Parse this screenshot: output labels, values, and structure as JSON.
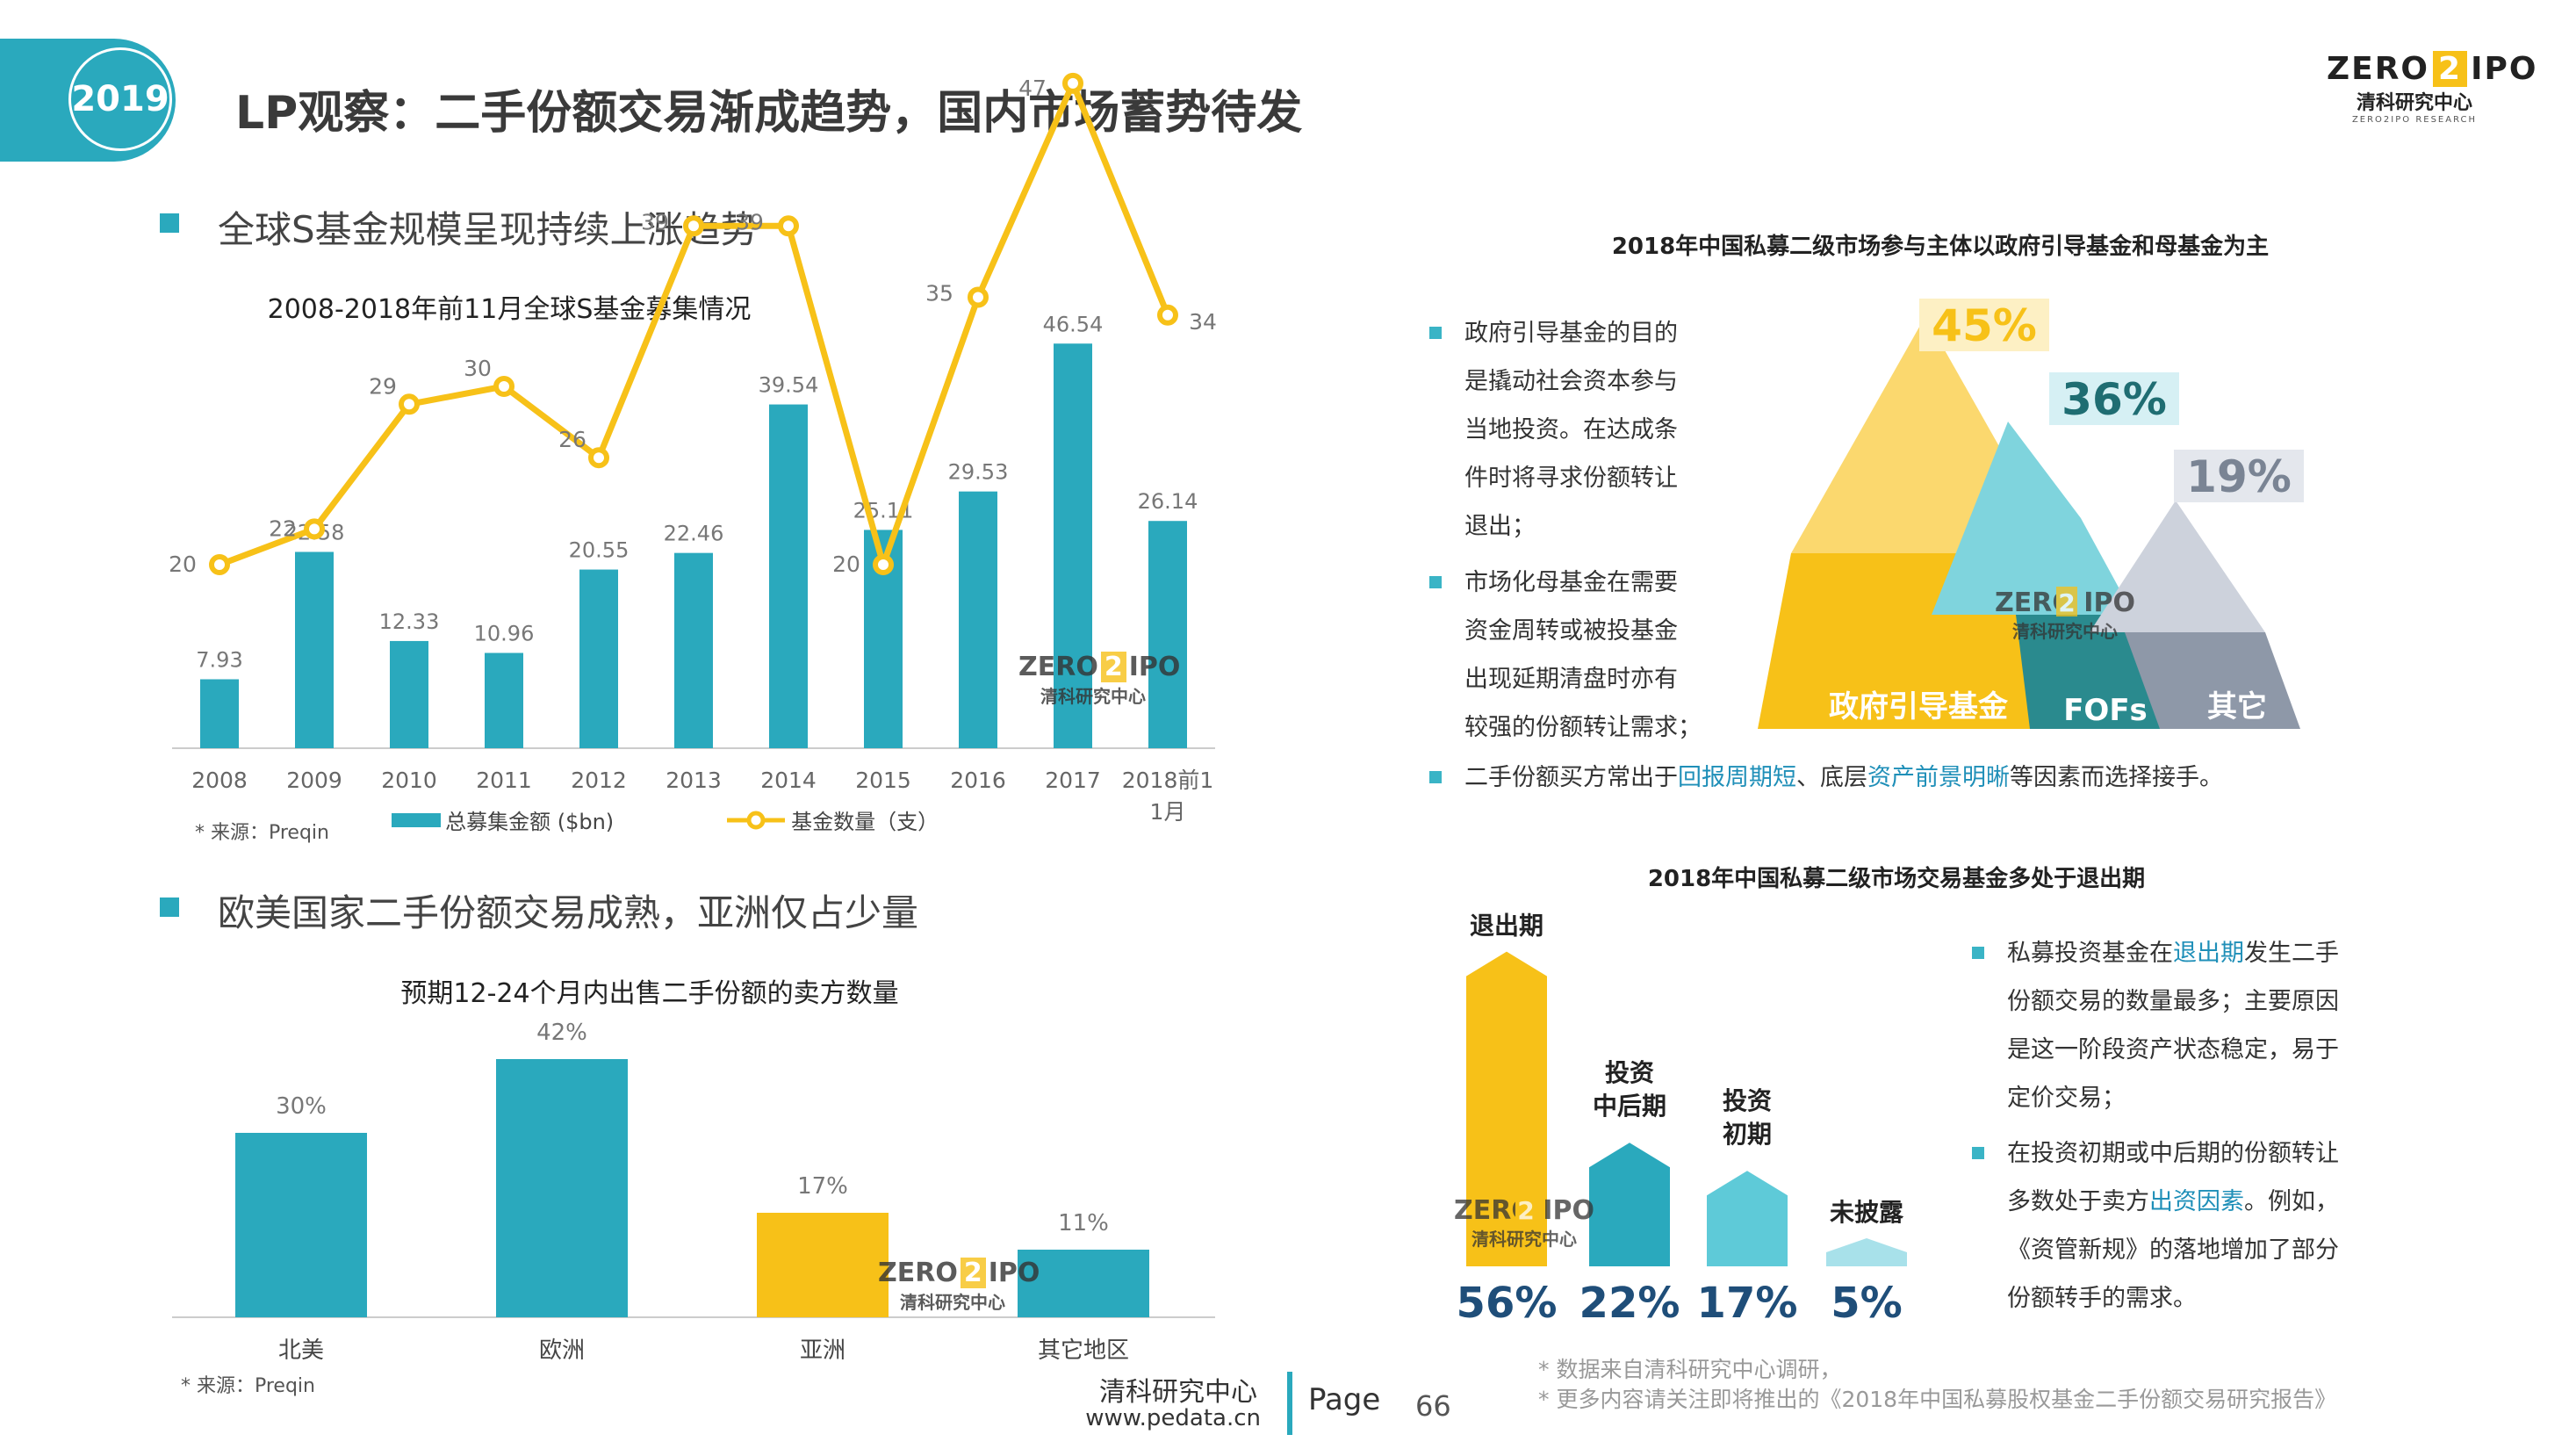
{
  "header": {
    "year_badge": "2019",
    "title": "LP观察：二手份额交易渐成趋势，国内市场蓄势待发",
    "logo": {
      "wordmark_left": "ZERO",
      "wordmark_mid": "2",
      "wordmark_right": "IPO",
      "cn_name": "清科研究中心",
      "en_name": "ZERO2IPO RESEARCH"
    }
  },
  "section1": {
    "heading": "全球S基金规模呈现持续上涨趋势",
    "chart_title": "2008-2018年前11月全球S基金募集情况",
    "source": "* 来源：Preqin",
    "legend_bar": "总募集金额 ($bn)",
    "legend_line": "基金数量（支）"
  },
  "section2": {
    "heading": "欧美国家二手份额交易成熟，亚洲仅占少量",
    "chart_title": "预期12-24个月内出售二手份额的卖方数量",
    "source": "* 来源：Preqin"
  },
  "right_top": {
    "title": "2018年中国私募二级市场参与主体以政府引导基金和母基金为主",
    "bullets": [
      [
        "政府引导基金的目的",
        "是撬动社会资本参与",
        "当地投资。在达成条",
        "件时将寻求份额转让",
        "退出；"
      ],
      [
        "市场化母基金在需要",
        "资金周转或被投基金",
        "出现延期清盘时亦有",
        "较强的份额转让需求；"
      ]
    ],
    "bullet3": {
      "a": "二手份额买方常出于",
      "b": "回报周期短",
      "c": "、底层",
      "d": "资产前景明晰",
      "e": "等因素而选择接手。"
    },
    "mountains": [
      {
        "pct": "45%",
        "label": "政府引导基金",
        "color": "#f7c118",
        "light": "#fbd86e"
      },
      {
        "pct": "36%",
        "label": "FOFs",
        "color": "#2a8a8e",
        "light": "#7fd4dd"
      },
      {
        "pct": "19%",
        "label": "其它",
        "color": "#8e98a8",
        "light": "#cdd2dc"
      }
    ]
  },
  "right_bottom": {
    "title": "2018年中国私募二级市场交易基金多处于退出期",
    "bars": [
      {
        "label": "退出期",
        "pct": "56%",
        "value": 56,
        "color": "#f7c118"
      },
      {
        "label": "投资中后期",
        "label_lines": [
          "投资",
          "中后期"
        ],
        "pct": "22%",
        "value": 22,
        "color": "#2aa9bd"
      },
      {
        "label": "投资初期",
        "label_lines": [
          "投资",
          "初期"
        ],
        "pct": "17%",
        "value": 17,
        "color": "#5ecad8"
      },
      {
        "label": "未披露",
        "pct": "5%",
        "value": 5,
        "color": "#a8e1ea"
      }
    ],
    "note1": {
      "a": "私募投资基金在",
      "b": "退出期",
      "c": "发生二手",
      "lines": [
        "份额交易的数量最多；主要原因",
        "是这一阶段资产状态稳定，易于",
        "定价交易；"
      ]
    },
    "note2": {
      "line1": "在投资初期或中后期的份额转让",
      "line2a": "多数处于卖方",
      "line2b": "出资因素",
      "line2c": "。例如，",
      "lines": [
        "《资管新规》的落地增加了部分",
        "份额转手的需求。"
      ]
    }
  },
  "footer": {
    "org": "清科研究中心",
    "url": "www.pedata.cn",
    "page_label": "Page",
    "page_number": "66",
    "note1": "* 数据来自清科研究中心调研，",
    "note2": "* 更多内容请关注即将推出的《2018年中国私募股权基金二手份额交易研究报告》"
  },
  "chart_data": [
    {
      "type": "bar",
      "title": "2008-2018年前11月全球S基金募集情况",
      "categories": [
        "2008",
        "2009",
        "2010",
        "2011",
        "2012",
        "2013",
        "2014",
        "2015",
        "2016",
        "2017",
        "2018前11月"
      ],
      "series": [
        {
          "name": "总募集金额 ($bn)",
          "type": "bar",
          "color": "#2aa9bd",
          "values": [
            7.93,
            22.58,
            12.33,
            10.96,
            20.55,
            22.46,
            39.54,
            25.11,
            29.53,
            46.54,
            26.14
          ]
        },
        {
          "name": "基金数量（支）",
          "type": "line",
          "color": "#f7c118",
          "values": [
            20,
            22,
            29,
            30,
            26,
            39,
            39,
            20,
            35,
            47,
            34
          ]
        }
      ]
    },
    {
      "type": "bar",
      "title": "预期12-24个月内出售二手份额的卖方数量",
      "categories": [
        "北美",
        "欧洲",
        "亚洲",
        "其它地区"
      ],
      "values": [
        30,
        42,
        17,
        11
      ],
      "value_labels": [
        "30%",
        "42%",
        "17%",
        "11%"
      ],
      "colors": [
        "#2aa9bd",
        "#2aa9bd",
        "#f7c118",
        "#2aa9bd"
      ]
    },
    {
      "type": "bar",
      "title": "2018年中国私募二级市场参与主体以政府引导基金和母基金为主",
      "categories": [
        "政府引导基金",
        "FOFs",
        "其它"
      ],
      "values": [
        45,
        36,
        19
      ]
    },
    {
      "type": "bar",
      "title": "2018年中国私募二级市场交易基金多处于退出期",
      "categories": [
        "退出期",
        "投资中后期",
        "投资初期",
        "未披露"
      ],
      "values": [
        56,
        22,
        17,
        5
      ]
    }
  ]
}
